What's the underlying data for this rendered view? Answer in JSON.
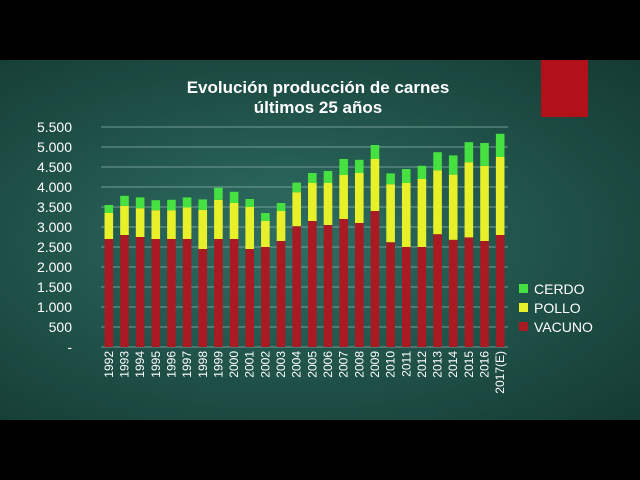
{
  "slide": {
    "title_line1": "Evolución producción de carnes",
    "title_line2": "últimos 25 años"
  },
  "colors": {
    "vacuno": "#aa1a22",
    "pollo": "#e8f02a",
    "cerdo": "#46e040",
    "accent": "#b3111a"
  },
  "chart_data": {
    "type": "bar",
    "stacked": true,
    "title": "Evolución producción de carnes últimos 25 años",
    "categories": [
      "1992",
      "1993",
      "1994",
      "1995",
      "1996",
      "1997",
      "1998",
      "1999",
      "2000",
      "2001",
      "2002",
      "2003",
      "2004",
      "2005",
      "2006",
      "2007",
      "2008",
      "2009",
      "2010",
      "2011",
      "2012",
      "2013",
      "2014",
      "2015",
      "2016",
      "2017(E)"
    ],
    "series": [
      {
        "name": "VACUNO",
        "values": [
          2700,
          2800,
          2750,
          2700,
          2700,
          2700,
          2450,
          2700,
          2700,
          2450,
          2500,
          2650,
          3020,
          3150,
          3050,
          3200,
          3100,
          3400,
          2620,
          2500,
          2500,
          2820,
          2680,
          2740,
          2650,
          2800
        ]
      },
      {
        "name": "POLLO",
        "values": [
          650,
          730,
          720,
          720,
          720,
          790,
          980,
          980,
          900,
          1050,
          650,
          750,
          850,
          950,
          1050,
          1100,
          1250,
          1300,
          1450,
          1600,
          1700,
          1600,
          1630,
          1880,
          1880,
          1950
        ]
      },
      {
        "name": "CERDO",
        "values": [
          200,
          250,
          270,
          250,
          260,
          250,
          260,
          300,
          280,
          200,
          200,
          200,
          240,
          250,
          300,
          400,
          330,
          350,
          270,
          350,
          330,
          450,
          480,
          500,
          570,
          580
        ]
      }
    ],
    "ylim": [
      0,
      5500
    ],
    "yticks": [
      0,
      500,
      1000,
      1500,
      2000,
      2500,
      3000,
      3500,
      4000,
      4500,
      5000,
      5500
    ],
    "ytick_labels": [
      "-",
      "500",
      "1.000",
      "1.500",
      "2.000",
      "2.500",
      "3.000",
      "3.500",
      "4.000",
      "4.500",
      "5.000",
      "5.500"
    ],
    "grid": true,
    "legend": "right",
    "legend_order": [
      "CERDO",
      "POLLO",
      "VACUNO"
    ]
  }
}
